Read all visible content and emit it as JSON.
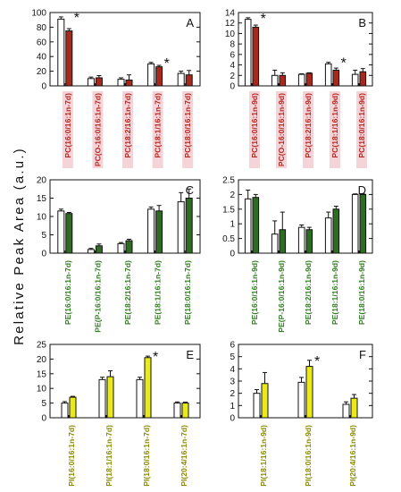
{
  "ylabel": "Relative Peak Area (a.u.)",
  "chart_data": [
    {
      "type": "bar",
      "panel_label": "A",
      "ylim": [
        0,
        100
      ],
      "yticks": [
        0,
        20,
        40,
        60,
        80,
        100
      ],
      "categories": [
        "PC(16:0/16:1n-7d)",
        "PC(O-16:0/16:1n-7d)",
        "PC(18:2/16:1n-7d)",
        "PC(18:1/16:1n-7d)",
        "PC(18:0/16:1n-7d)"
      ],
      "label_color": "#b3261e",
      "label_bg": "#f4d4d8",
      "colors": [
        "#ffffff",
        "#a52a1e"
      ],
      "series": [
        {
          "values": [
            91,
            10,
            9,
            30,
            17
          ],
          "errors": [
            3,
            2,
            2,
            2,
            3
          ]
        },
        {
          "values": [
            75,
            11,
            8,
            26,
            15
          ],
          "errors": [
            3,
            3,
            7,
            2,
            6
          ]
        }
      ],
      "significant": [
        0,
        3
      ]
    },
    {
      "type": "bar",
      "panel_label": "B",
      "ylim": [
        0,
        14
      ],
      "yticks": [
        0,
        2,
        4,
        6,
        8,
        10,
        12,
        14
      ],
      "categories": [
        "PC(16:0/16:1n-9d)",
        "PC(O-16:0/16:1n-9d)",
        "PC(18:2/16:1n-9d)",
        "PC(18:1/16:1n-9d)",
        "PC(18:0/16:1n-9d)"
      ],
      "label_color": "#b3261e",
      "label_bg": "#f4d4d8",
      "colors": [
        "#ffffff",
        "#a52a1e"
      ],
      "series": [
        {
          "values": [
            12.7,
            2.0,
            2.2,
            4.2,
            2.2
          ],
          "errors": [
            0.3,
            1.0,
            0.1,
            0.3,
            0.8
          ]
        },
        {
          "values": [
            11.2,
            2.0,
            2.4,
            3.0,
            2.7
          ],
          "errors": [
            0.4,
            0.5,
            0.1,
            0.4,
            0.6
          ]
        }
      ],
      "significant": [
        0,
        3
      ]
    },
    {
      "type": "bar",
      "panel_label": "C",
      "ylim": [
        0,
        20
      ],
      "yticks": [
        0,
        5,
        10,
        15,
        20
      ],
      "categories": [
        "PE(16:0/16:1n-7d)",
        "PE(P-16:0/16:1n-7d)",
        "PE(18:2/16:1n-7d)",
        "PE(18:1/16:1n-7d)",
        "PE(18:0/16:1n-7d)"
      ],
      "label_color": "#2e7d1e",
      "label_bg": "#ffffff",
      "colors": [
        "#ffffff",
        "#2f6b24"
      ],
      "series": [
        {
          "values": [
            11.5,
            1.0,
            2.6,
            12.0,
            14.0
          ],
          "errors": [
            0.5,
            0.3,
            0.3,
            0.6,
            2.5
          ]
        },
        {
          "values": [
            10.8,
            2.0,
            3.4,
            11.5,
            15.0
          ],
          "errors": [
            0.3,
            0.5,
            0.4,
            1.5,
            2.5
          ]
        }
      ],
      "significant": []
    },
    {
      "type": "bar",
      "panel_label": "D",
      "ylim": [
        0,
        2.5
      ],
      "yticks": [
        0.0,
        0.5,
        1.0,
        1.5,
        2.0,
        2.5
      ],
      "categories": [
        "PE(16:0/16:1n-9d)",
        "PE(P-16:0/16:1n-9d)",
        "PE(18:2/16:1n-9d)",
        "PE(18:1/16:1n-9d)",
        "PE(18:0/16:1n-9d)"
      ],
      "label_color": "#2e7d1e",
      "label_bg": "#ffffff",
      "colors": [
        "#ffffff",
        "#2f6b24"
      ],
      "series": [
        {
          "values": [
            1.85,
            0.65,
            0.88,
            1.2,
            2.0
          ],
          "errors": [
            0.3,
            0.45,
            0.08,
            0.2,
            0.02
          ]
        },
        {
          "values": [
            1.9,
            0.8,
            0.8,
            1.5,
            2.0
          ],
          "errors": [
            0.1,
            0.6,
            0.08,
            0.1,
            0.02
          ]
        }
      ],
      "significant": []
    },
    {
      "type": "bar",
      "panel_label": "E",
      "ylim": [
        0,
        25
      ],
      "yticks": [
        0,
        5,
        10,
        15,
        20,
        25
      ],
      "categories": [
        "PI(16:0/16:1n-7d)",
        "PI(18:1/16:1n-7d)",
        "PI(18:0/16:1n-7d)",
        "PI(20:4/16:1n-7d)"
      ],
      "label_color": "#8a8a00",
      "label_bg": "#ffffff",
      "colors": [
        "#ffffff",
        "#eaea18"
      ],
      "series": [
        {
          "values": [
            5.0,
            13.0,
            13.0,
            5.0
          ],
          "errors": [
            0.5,
            0.8,
            0.8,
            0.4
          ]
        },
        {
          "values": [
            7.0,
            14.0,
            20.5,
            5.0
          ],
          "errors": [
            0.3,
            2.0,
            0.5,
            0.3
          ]
        }
      ],
      "significant": [
        2
      ]
    },
    {
      "type": "bar",
      "panel_label": "F",
      "ylim": [
        0,
        6
      ],
      "yticks": [
        0,
        1,
        2,
        3,
        4,
        5,
        6
      ],
      "categories": [
        "PI(18:1/16:1n-9d)",
        "PI(18:0/16:1n-9d)",
        "PI(20:4/16:1n-9d)"
      ],
      "label_color": "#8a8a00",
      "label_bg": "#ffffff",
      "colors": [
        "#ffffff",
        "#eaea18"
      ],
      "series": [
        {
          "values": [
            2.0,
            2.9,
            1.1
          ],
          "errors": [
            0.3,
            0.4,
            0.2
          ]
        },
        {
          "values": [
            2.8,
            4.2,
            1.6
          ],
          "errors": [
            0.9,
            0.5,
            0.3
          ]
        }
      ],
      "significant": [
        1
      ]
    }
  ]
}
